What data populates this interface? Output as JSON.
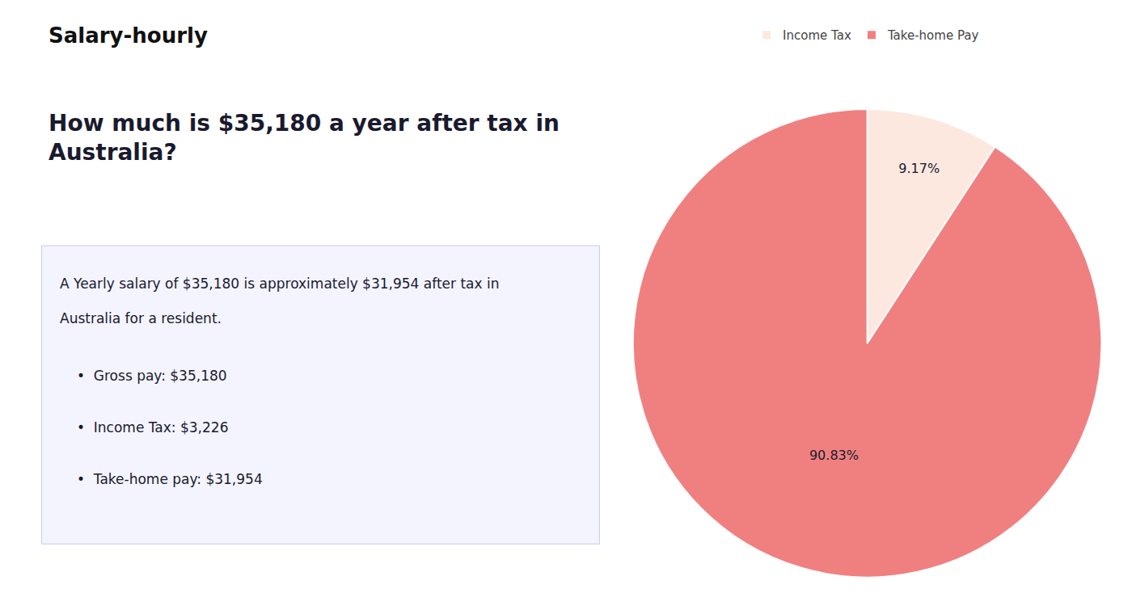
{
  "chart_data": {
    "type": "pie",
    "title": "How much is $35,180 a year after tax in\nAustralia?",
    "annotations": [
      "Salary-hourly",
      "A Yearly salary of $35,180 is approximately $31,954 after tax in",
      "Australia for a resident.",
      "•  Gross pay: $35,180",
      "•  Income Tax: $3,226",
      "•  Take-home pay: $31,954"
    ],
    "categories": [
      "Income Tax",
      "Take-home Pay"
    ],
    "values": [
      9.17,
      90.83
    ],
    "value_labels": [
      "9.17%",
      "90.83%"
    ],
    "colors": [
      "#fde8e0",
      "#f08080"
    ],
    "data_labels": true,
    "legend": "top"
  }
}
